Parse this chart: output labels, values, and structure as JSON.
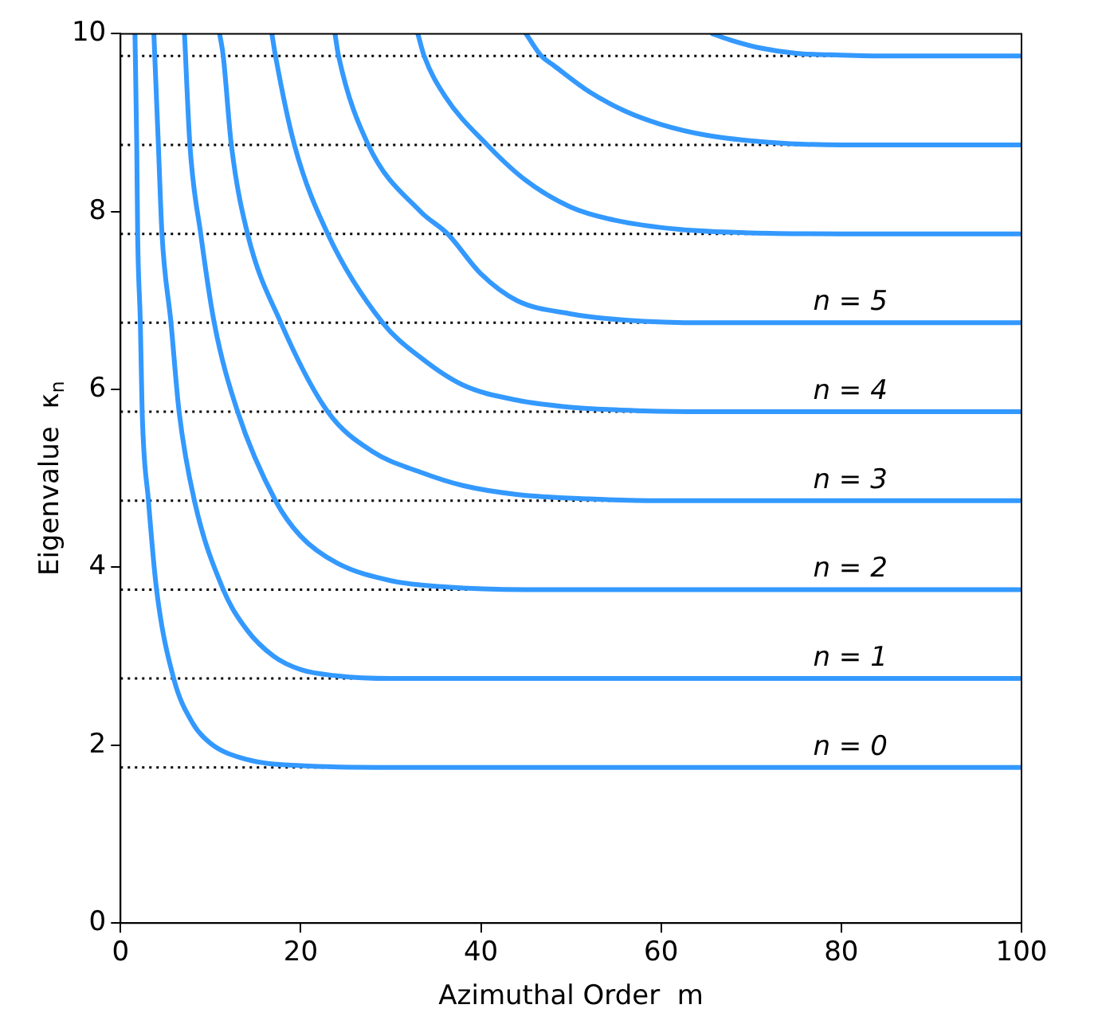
{
  "chart_data": {
    "type": "line",
    "xlabel": "Azimuthal Order  m",
    "ylabel": "Eigenvalue  κ$_{n}$",
    "xlim": [
      0,
      100
    ],
    "xticks": [
      0,
      20,
      40,
      60,
      80,
      100
    ],
    "ylim": [
      0,
      10
    ],
    "yticks": [
      0,
      2,
      4,
      6,
      8,
      10
    ],
    "grid": false,
    "legend": false,
    "marker": "none",
    "line_style": "solid",
    "series": [
      {
        "color": "#3399ff",
        "x": [
          1.6,
          1.8,
          1.9,
          2.2,
          2.4,
          3.1,
          4.0,
          5.9,
          8,
          10,
          14,
          20,
          30,
          100
        ],
        "values": [
          10,
          8.75,
          7.75,
          6.75,
          5.75,
          4.75,
          3.75,
          2.75,
          2.25,
          2.02,
          1.84,
          1.77,
          1.75,
          1.75
        ]
      },
      {
        "color": "#3399ff",
        "x": [
          3.7,
          3.8,
          4.2,
          4.6,
          5.6,
          6.5,
          8.2,
          11.4,
          14,
          17,
          20,
          24,
          30,
          100
        ],
        "values": [
          10,
          9.75,
          8.75,
          7.75,
          6.75,
          5.75,
          4.75,
          3.75,
          3.3,
          3.0,
          2.85,
          2.78,
          2.75,
          2.75
        ]
      },
      {
        "color": "#3399ff",
        "x": [
          7.1,
          7.7,
          8.9,
          10.4,
          13,
          17.2,
          20,
          24,
          30,
          36,
          45,
          100
        ],
        "values": [
          10,
          8.75,
          7.75,
          6.75,
          5.75,
          4.75,
          4.35,
          4.05,
          3.85,
          3.78,
          3.75,
          3.75
        ]
      },
      {
        "color": "#3399ff",
        "x": [
          11,
          11.4,
          12.3,
          14.1,
          17.8,
          23,
          28,
          33.3,
          38,
          44,
          52,
          60,
          100
        ],
        "values": [
          10,
          9.75,
          8.75,
          7.75,
          6.75,
          5.75,
          5.3,
          5.07,
          4.92,
          4.82,
          4.77,
          4.75,
          4.75
        ]
      },
      {
        "color": "#3399ff",
        "x": [
          16.8,
          17.2,
          19.3,
          23,
          29.1,
          33.3,
          38,
          44,
          50,
          58,
          65,
          100
        ],
        "values": [
          10,
          9.75,
          8.75,
          7.75,
          6.75,
          6.36,
          6.05,
          5.88,
          5.8,
          5.76,
          5.75,
          5.75
        ]
      },
      {
        "color": "#3399ff",
        "x": [
          23.8,
          24.2,
          27.5,
          33.3,
          36.3,
          40,
          44,
          50,
          56,
          65,
          100
        ],
        "values": [
          10,
          9.75,
          8.75,
          8.0,
          7.75,
          7.3,
          7.0,
          6.85,
          6.78,
          6.75,
          6.75
        ]
      },
      {
        "color": "#3399ff",
        "x": [
          33,
          33.7,
          36,
          40.7,
          45,
          50,
          55,
          62,
          70,
          80,
          100
        ],
        "values": [
          10,
          9.75,
          9.3,
          8.75,
          8.35,
          8.05,
          7.9,
          7.8,
          7.76,
          7.75,
          7.75
        ]
      },
      {
        "color": "#3399ff",
        "x": [
          45,
          46.7,
          48,
          52,
          56,
          60,
          65,
          72,
          80,
          100
        ],
        "values": [
          10,
          9.75,
          9.65,
          9.35,
          9.13,
          8.98,
          8.86,
          8.78,
          8.75,
          8.75
        ]
      },
      {
        "color": "#3399ff",
        "x": [
          65.7,
          68,
          71,
          75,
          80,
          85,
          100
        ],
        "values": [
          10,
          9.92,
          9.84,
          9.78,
          9.76,
          9.75,
          9.75
        ]
      }
    ],
    "ref_lines": [
      {
        "axis": "y",
        "value": 1.75,
        "color": "#000000",
        "line_style": "dotted"
      },
      {
        "axis": "y",
        "value": 2.75,
        "color": "#000000",
        "line_style": "dotted"
      },
      {
        "axis": "y",
        "value": 3.75,
        "color": "#000000",
        "line_style": "dotted"
      },
      {
        "axis": "y",
        "value": 4.75,
        "color": "#000000",
        "line_style": "dotted"
      },
      {
        "axis": "y",
        "value": 5.75,
        "color": "#000000",
        "line_style": "dotted"
      },
      {
        "axis": "y",
        "value": 6.75,
        "color": "#000000",
        "line_style": "dotted"
      },
      {
        "axis": "y",
        "value": 7.75,
        "color": "#000000",
        "line_style": "dotted"
      },
      {
        "axis": "y",
        "value": 8.75,
        "color": "#000000",
        "line_style": "dotted"
      },
      {
        "axis": "y",
        "value": 9.75,
        "color": "#000000",
        "line_style": "dotted"
      }
    ],
    "annotations": [
      "n = 0",
      "n = 1",
      "n = 2",
      "n = 3",
      "n = 4",
      "n = 5"
    ]
  }
}
